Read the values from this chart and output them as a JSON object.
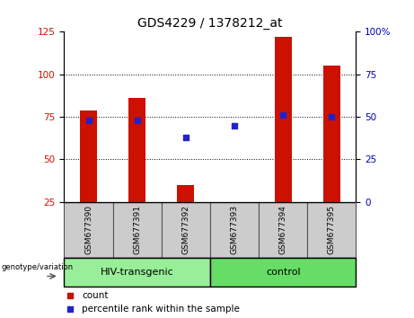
{
  "title": "GDS4229 / 1378212_at",
  "samples": [
    "GSM677390",
    "GSM677391",
    "GSM677392",
    "GSM677393",
    "GSM677394",
    "GSM677395"
  ],
  "count_values": [
    79,
    86,
    35,
    25,
    122,
    105
  ],
  "percentile_values": [
    48,
    48,
    38,
    45,
    51,
    50
  ],
  "left_ylim": [
    25,
    125
  ],
  "right_ylim": [
    0,
    100
  ],
  "left_yticks": [
    25,
    50,
    75,
    100,
    125
  ],
  "right_yticks": [
    0,
    25,
    50,
    75,
    100
  ],
  "bar_color": "#cc1100",
  "dot_color": "#2222cc",
  "groups": [
    {
      "label": "HIV-transgenic",
      "start": 0,
      "end": 3,
      "color": "#99ee99"
    },
    {
      "label": "control",
      "start": 3,
      "end": 6,
      "color": "#66dd66"
    }
  ],
  "group_label": "genotype/variation",
  "legend_items": [
    {
      "label": "count",
      "color": "#cc1100"
    },
    {
      "label": "percentile rank within the sample",
      "color": "#2222cc"
    }
  ],
  "bar_bottom": 25,
  "bar_width": 0.35,
  "title_fontsize": 10,
  "tick_bg_color": "#cccccc",
  "tick_edge_color": "#888888",
  "grid_lines": [
    50,
    75,
    100
  ]
}
